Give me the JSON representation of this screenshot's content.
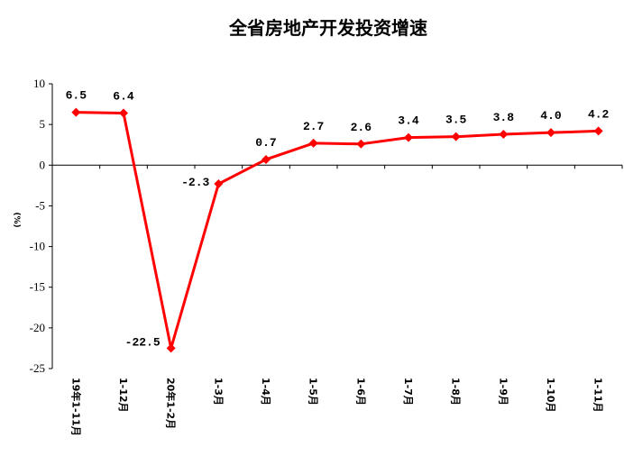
{
  "chart_data": {
    "type": "line",
    "title": "全省房地产开发投资增速",
    "ylabel": "(%)",
    "xlabel": "",
    "ylim": [
      -25,
      10
    ],
    "yticks": [
      10,
      5,
      0,
      -5,
      -10,
      -15,
      -20,
      -25
    ],
    "categories": [
      "19年1-11月",
      "1-12月",
      "20年1-2月",
      "1-3月",
      "1-4月",
      "1-5月",
      "1-6月",
      "1-7月",
      "1-8月",
      "1-9月",
      "1-10月",
      "1-11月"
    ],
    "series": [
      {
        "values": [
          6.5,
          6.4,
          -22.5,
          -2.3,
          0.7,
          2.7,
          2.6,
          3.4,
          3.5,
          3.8,
          4.0,
          4.2
        ],
        "labels": [
          "6.5",
          "6.4",
          "-22.5",
          "-2.3",
          "0.7",
          "2.7",
          "2.6",
          "3.4",
          "3.5",
          "3.8",
          "4.0",
          "4.2"
        ],
        "color": "#ff0000"
      }
    ],
    "grid": false,
    "legend": "none"
  }
}
